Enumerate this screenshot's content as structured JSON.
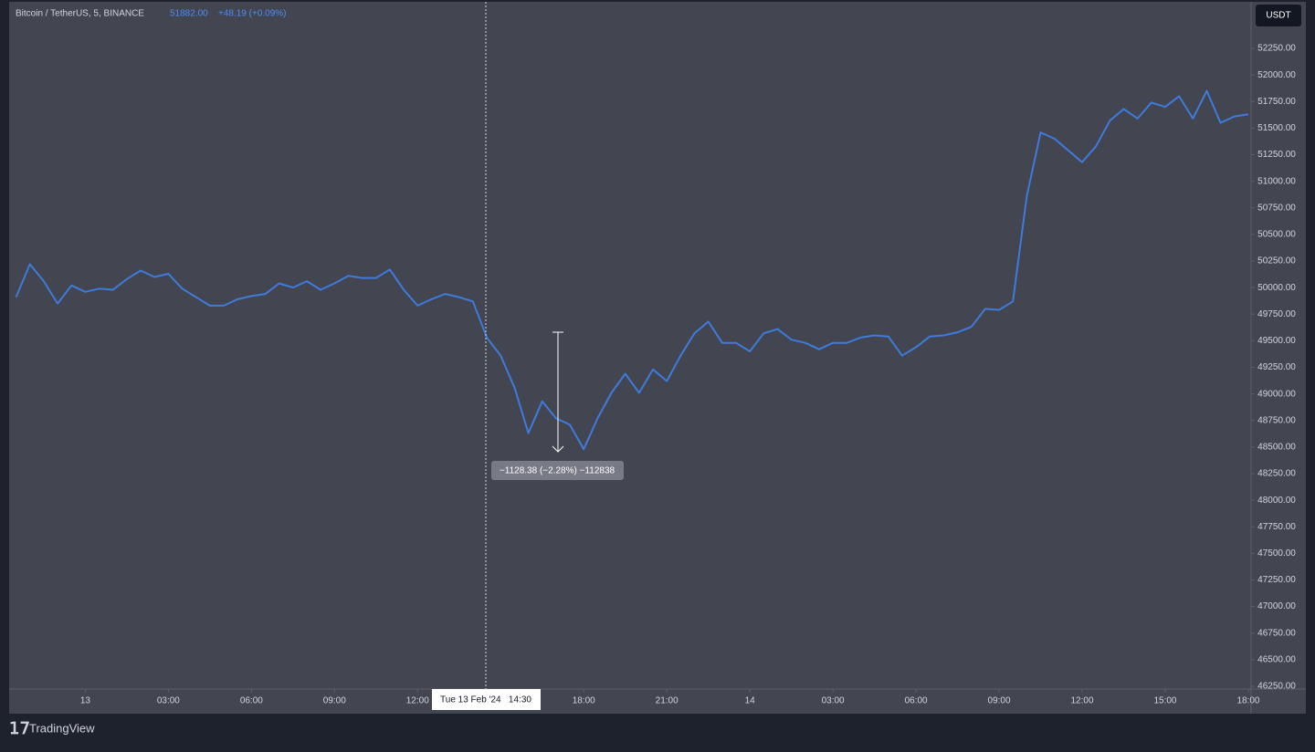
{
  "header": {
    "symbol": "Bitcoin / TetherUS, 5, BINANCE",
    "price": "51882.00",
    "change": "+48.19 (+0.09%)",
    "currency": "USDT"
  },
  "crosshair_label": "Tue 13 Feb '24   14:30",
  "measure_label": "−1128.38 (−2.28%) −112838",
  "brand": "TradingView",
  "chart_data": {
    "type": "line",
    "color": "#3d7bdc",
    "x": [
      -2.5,
      -2,
      -1.5,
      -1,
      -0.5,
      0,
      0.5,
      1,
      1.5,
      2,
      2.5,
      3,
      3.5,
      4,
      4.5,
      5,
      5.5,
      6,
      6.5,
      7,
      7.5,
      8,
      8.5,
      9,
      9.5,
      10,
      10.5,
      11,
      11.5,
      12,
      12.5,
      13,
      13.5,
      14,
      14.5,
      15,
      15.5,
      16,
      16.5,
      17,
      17.5,
      18,
      18.5,
      19,
      19.5,
      20,
      20.5,
      21,
      21.5,
      22,
      22.5,
      23,
      23.5,
      24,
      24.5,
      25,
      25.5,
      26,
      26.5,
      27,
      27.5,
      28,
      28.5,
      29,
      29.5,
      30,
      30.5,
      31,
      31.5,
      32,
      32.5,
      33,
      33.5,
      34,
      34.5,
      35,
      35.5,
      36,
      36.5,
      37,
      37.5,
      38,
      38.5,
      39,
      39.5,
      40,
      40.5,
      41,
      41.5,
      42
    ],
    "values": [
      49910,
      50220,
      50060,
      49850,
      50020,
      49960,
      49990,
      49980,
      50080,
      50160,
      50100,
      50130,
      49990,
      49910,
      49830,
      49830,
      49890,
      49920,
      49940,
      50040,
      50000,
      50060,
      49980,
      50040,
      50110,
      50090,
      50090,
      50170,
      49980,
      49830,
      49890,
      49940,
      49910,
      49870,
      49530,
      49360,
      49060,
      48630,
      48930,
      48770,
      48710,
      48480,
      48770,
      49010,
      49190,
      49010,
      49230,
      49120,
      49360,
      49570,
      49680,
      49480,
      49480,
      49400,
      49570,
      49610,
      49510,
      49480,
      49420,
      49480,
      49480,
      49530,
      49550,
      49540,
      49360,
      49440,
      49540,
      49550,
      49580,
      49630,
      49800,
      49790,
      49870,
      50860,
      51460,
      51400,
      51290,
      51180,
      51330,
      51570,
      51680,
      51590,
      51740,
      51700,
      51800,
      51590,
      51850,
      51550,
      51610,
      51630
    ],
    "xlim": [
      -2.75,
      42.1
    ],
    "ylim": [
      46224,
      52688
    ],
    "xticks": [
      {
        "value": 0,
        "label": "13"
      },
      {
        "value": 3,
        "label": "03:00"
      },
      {
        "value": 6,
        "label": "06:00"
      },
      {
        "value": 9,
        "label": "09:00"
      },
      {
        "value": 12,
        "label": "12:00"
      },
      {
        "value": 18,
        "label": "18:00"
      },
      {
        "value": 21,
        "label": "21:00"
      },
      {
        "value": 24,
        "label": "14"
      },
      {
        "value": 27,
        "label": "03:00"
      },
      {
        "value": 30,
        "label": "06:00"
      },
      {
        "value": 33,
        "label": "09:00"
      },
      {
        "value": 36,
        "label": "12:00"
      },
      {
        "value": 39,
        "label": "15:00"
      },
      {
        "value": 42,
        "label": "18:00"
      }
    ],
    "yticks": [
      {
        "value": 46250,
        "label": "46250.00"
      },
      {
        "value": 46500,
        "label": "46500.00"
      },
      {
        "value": 46750,
        "label": "46750.00"
      },
      {
        "value": 47000,
        "label": "47000.00"
      },
      {
        "value": 47250,
        "label": "47250.00"
      },
      {
        "value": 47500,
        "label": "47500.00"
      },
      {
        "value": 47750,
        "label": "47750.00"
      },
      {
        "value": 48000,
        "label": "48000.00"
      },
      {
        "value": 48250,
        "label": "48250.00"
      },
      {
        "value": 48500,
        "label": "48500.00"
      },
      {
        "value": 48750,
        "label": "48750.00"
      },
      {
        "value": 49000,
        "label": "49000.00"
      },
      {
        "value": 49250,
        "label": "49250.00"
      },
      {
        "value": 49500,
        "label": "49500.00"
      },
      {
        "value": 49750,
        "label": "49750.00"
      },
      {
        "value": 50000,
        "label": "50000.00"
      },
      {
        "value": 50250,
        "label": "50250.00"
      },
      {
        "value": 50500,
        "label": "50500.00"
      },
      {
        "value": 50750,
        "label": "50750.00"
      },
      {
        "value": 51000,
        "label": "51000.00"
      },
      {
        "value": 51250,
        "label": "51250.00"
      },
      {
        "value": 51500,
        "label": "51500.00"
      },
      {
        "value": 51750,
        "label": "51750.00"
      },
      {
        "value": 52000,
        "label": "52000.00"
      },
      {
        "value": 52250,
        "label": "52250.00"
      }
    ]
  }
}
